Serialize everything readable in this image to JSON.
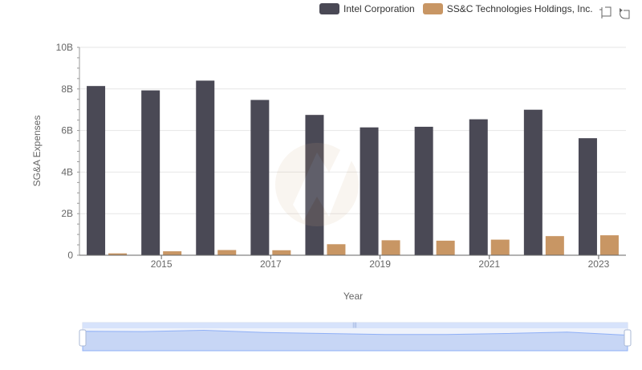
{
  "chart_data": {
    "type": "bar",
    "categories": [
      "2014",
      "2015",
      "2016",
      "2017",
      "2018",
      "2019",
      "2020",
      "2021",
      "2022",
      "2023"
    ],
    "series": [
      {
        "name": "Intel Corporation",
        "color": "#4a4955",
        "values": [
          8.14,
          7.93,
          8.4,
          7.47,
          6.75,
          6.15,
          6.18,
          6.54,
          7.0,
          5.63
        ]
      },
      {
        "name": "SS&C Technologies Holdings, Inc.",
        "color": "#c89664",
        "values": [
          0.09,
          0.19,
          0.25,
          0.24,
          0.53,
          0.72,
          0.7,
          0.75,
          0.92,
          0.96
        ]
      }
    ],
    "xlabel": "Year",
    "ylabel": "SG&A Expenses",
    "ylim": [
      0,
      10
    ],
    "y_ticks": [
      "0",
      "2B",
      "4B",
      "6B",
      "8B",
      "10B"
    ],
    "x_tick_labels": [
      "2015",
      "2017",
      "2019",
      "2021",
      "2023"
    ],
    "grid": true,
    "legend_position": "top-right"
  },
  "toolbox": {
    "icons": [
      "zoom-icon",
      "restore-icon"
    ]
  }
}
